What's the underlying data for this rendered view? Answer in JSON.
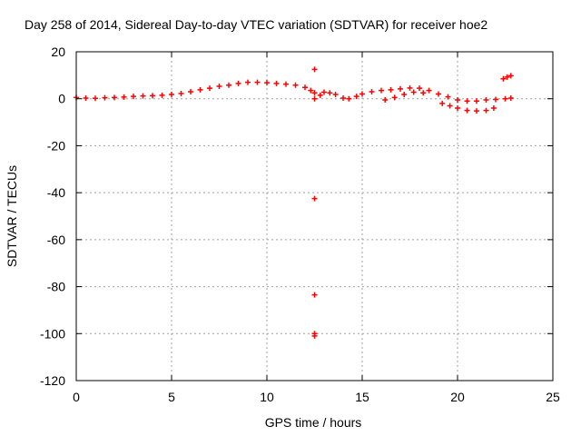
{
  "chart_data": {
    "type": "scatter",
    "title": "Day 258 of 2014, Sidereal Day-to-day VTEC variation (SDTVAR) for receiver hoe2",
    "xlabel": "GPS time / hours",
    "ylabel": "SDTVAR / TECUs",
    "xlim": [
      0,
      25
    ],
    "ylim": [
      -120,
      20
    ],
    "xticks": [
      0,
      5,
      10,
      15,
      20,
      25
    ],
    "yticks": [
      20,
      0,
      -20,
      -40,
      -60,
      -80,
      -100,
      -120
    ],
    "grid": true,
    "marker": "+",
    "colors": {
      "series": "#ff0000",
      "grid": "#a0a0a0",
      "axis": "#000000"
    },
    "series": [
      {
        "name": "SDTVAR",
        "points": [
          [
            0.0,
            0.5
          ],
          [
            0.5,
            0.3
          ],
          [
            1.0,
            0.2
          ],
          [
            1.5,
            0.4
          ],
          [
            2.0,
            0.5
          ],
          [
            2.5,
            0.7
          ],
          [
            3.0,
            1.0
          ],
          [
            3.5,
            1.2
          ],
          [
            4.0,
            1.3
          ],
          [
            4.5,
            1.5
          ],
          [
            5.0,
            1.8
          ],
          [
            5.5,
            2.2
          ],
          [
            6.0,
            3.0
          ],
          [
            6.5,
            3.8
          ],
          [
            7.0,
            4.5
          ],
          [
            7.5,
            5.3
          ],
          [
            8.0,
            5.8
          ],
          [
            8.5,
            6.5
          ],
          [
            9.0,
            7.0
          ],
          [
            9.5,
            7.0
          ],
          [
            10.0,
            6.8
          ],
          [
            10.5,
            6.5
          ],
          [
            11.0,
            6.2
          ],
          [
            11.5,
            5.8
          ],
          [
            12.0,
            4.8
          ],
          [
            12.3,
            3.5
          ],
          [
            12.5,
            2.5
          ],
          [
            12.8,
            1.5
          ],
          [
            13.0,
            2.8
          ],
          [
            13.3,
            2.5
          ],
          [
            13.6,
            1.8
          ],
          [
            14.0,
            0.3
          ],
          [
            14.3,
            0.0
          ],
          [
            14.7,
            1.0
          ],
          [
            15.0,
            2.0
          ],
          [
            15.5,
            3.0
          ],
          [
            16.0,
            3.5
          ],
          [
            16.5,
            3.8
          ],
          [
            17.0,
            4.2
          ],
          [
            17.5,
            4.6
          ],
          [
            18.0,
            4.5
          ],
          [
            18.5,
            3.5
          ],
          [
            19.0,
            2.0
          ],
          [
            19.5,
            0.8
          ],
          [
            20.0,
            -0.5
          ],
          [
            20.5,
            -1.0
          ],
          [
            21.0,
            -1.0
          ],
          [
            21.5,
            -0.5
          ],
          [
            22.0,
            -0.3
          ],
          [
            22.5,
            0.0
          ],
          [
            22.8,
            0.3
          ],
          [
            16.2,
            -0.5
          ],
          [
            16.7,
            0.5
          ],
          [
            17.2,
            1.8
          ],
          [
            17.7,
            2.8
          ],
          [
            18.2,
            2.5
          ],
          [
            19.2,
            -2.0
          ],
          [
            19.6,
            -3.0
          ],
          [
            20.0,
            -4.0
          ],
          [
            20.5,
            -5.0
          ],
          [
            21.0,
            -5.2
          ],
          [
            21.5,
            -5.0
          ],
          [
            21.9,
            -4.0
          ],
          [
            22.4,
            8.5
          ],
          [
            22.6,
            9.2
          ],
          [
            22.8,
            9.8
          ],
          [
            12.5,
            12.5
          ],
          [
            12.5,
            0.0
          ],
          [
            12.5,
            -42.5
          ],
          [
            12.5,
            -83.5
          ],
          [
            12.5,
            -100.0
          ],
          [
            12.5,
            -101.0
          ]
        ]
      }
    ]
  }
}
